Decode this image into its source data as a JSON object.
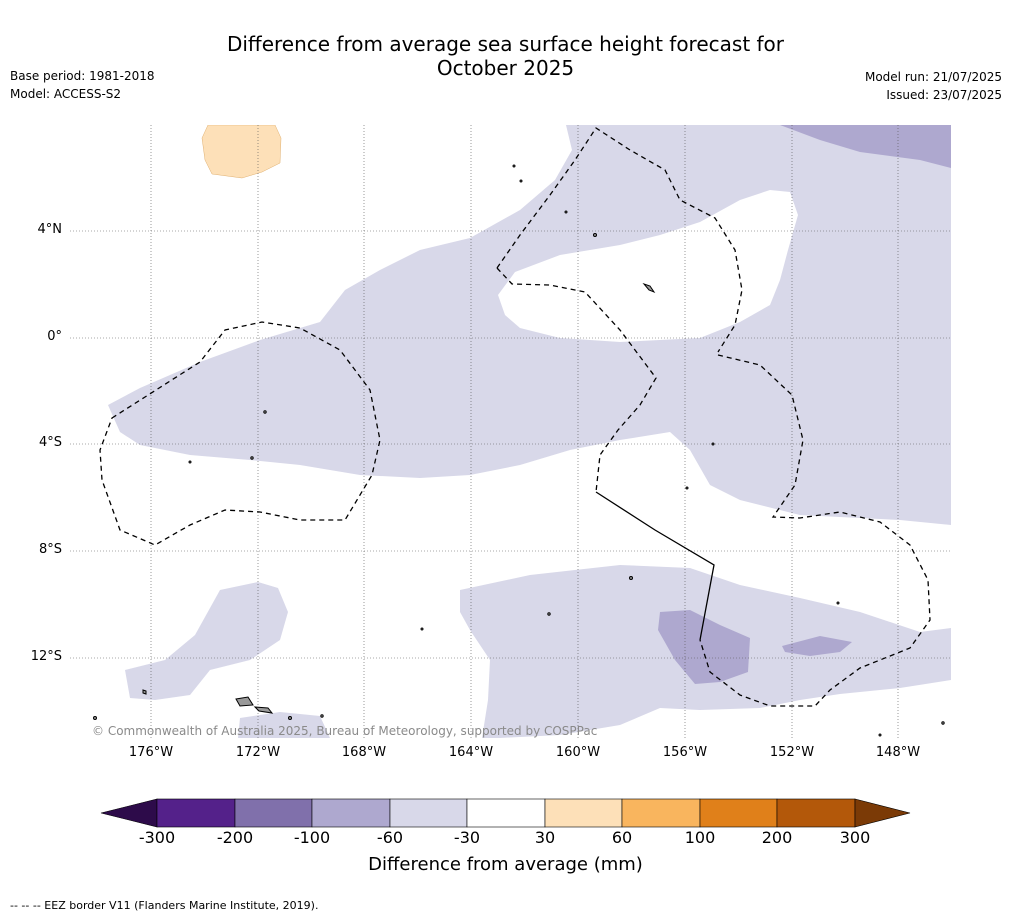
{
  "title_line1": "Difference from average sea surface height forecast for",
  "title_line2": "October 2025",
  "base_period": "Base period: 1981-2018",
  "model": "Model: ACCESS-S2",
  "model_run": "Model run: 21/07/2025",
  "issued": "Issued: 23/07/2025",
  "lat_labels": [
    "4°N",
    "0°",
    "4°S",
    "8°S",
    "12°S"
  ],
  "lon_labels": [
    "176°W",
    "172°W",
    "168°W",
    "164°W",
    "160°W",
    "156°W",
    "152°W",
    "148°W"
  ],
  "copyright": "© Commonwealth of Australia 2025, Bureau of Meteorology, supported by COSPPac",
  "colorbar": {
    "ticks": [
      "-300",
      "-200",
      "-100",
      "-60",
      "-30",
      "30",
      "60",
      "100",
      "200",
      "300"
    ],
    "label": "Difference from average (mm)",
    "colors": {
      "below_-300": "#2d0b4a",
      "-300_-200": "#54218a",
      "-200_-100": "#8070ab",
      "-100_-60": "#aea8cf",
      "-60_-30": "#d8d8e9",
      "-30_30": "#ffffff",
      "30_60": "#fde0b8",
      "60_100": "#f9b55e",
      "100_200": "#e0801a",
      "200_300": "#b3580a",
      "above_300": "#7b3a06"
    }
  },
  "footnote": "--  --  -- EEZ border V11 (Flanders Marine Institute, 2019)."
}
